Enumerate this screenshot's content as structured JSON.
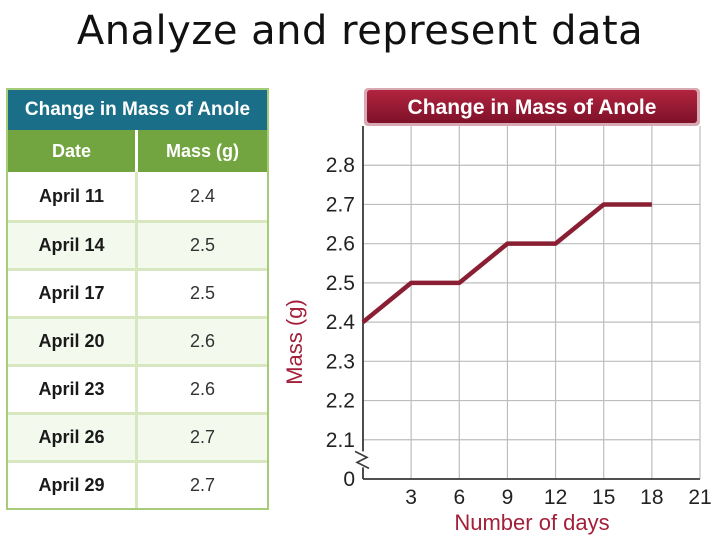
{
  "slide": {
    "title": "Analyze and represent data"
  },
  "table": {
    "title": "Change in Mass of Anole",
    "headers": [
      "Date",
      "Mass (g)"
    ],
    "rows": [
      [
        "April 11",
        "2.4"
      ],
      [
        "April 14",
        "2.5"
      ],
      [
        "April 17",
        "2.5"
      ],
      [
        "April 20",
        "2.6"
      ],
      [
        "April 23",
        "2.6"
      ],
      [
        "April 26",
        "2.7"
      ],
      [
        "April 29",
        "2.7"
      ]
    ]
  },
  "colors": {
    "line": "#8a1f33",
    "axis_label": "#a3203a",
    "title_banner": "#9b1b36",
    "table_title": "#1a6e88",
    "table_header": "#72a43f"
  },
  "chart_data": {
    "type": "line",
    "title": "Change in Mass of Anole",
    "xlabel": "Number of days",
    "ylabel": "Mass (g)",
    "x_ticks": [
      3,
      6,
      9,
      12,
      15,
      18,
      21
    ],
    "y_ticks": [
      "0",
      "2.1",
      "2.2",
      "2.3",
      "2.4",
      "2.5",
      "2.6",
      "2.7",
      "2.8"
    ],
    "y_axis_break": true,
    "xlim": [
      0,
      21
    ],
    "ylim": [
      2.0,
      2.9
    ],
    "grid": true,
    "series": [
      {
        "x": [
          0,
          3,
          6,
          9,
          12,
          15,
          18
        ],
        "y": [
          2.4,
          2.5,
          2.5,
          2.6,
          2.6,
          2.7,
          2.7
        ]
      }
    ]
  }
}
